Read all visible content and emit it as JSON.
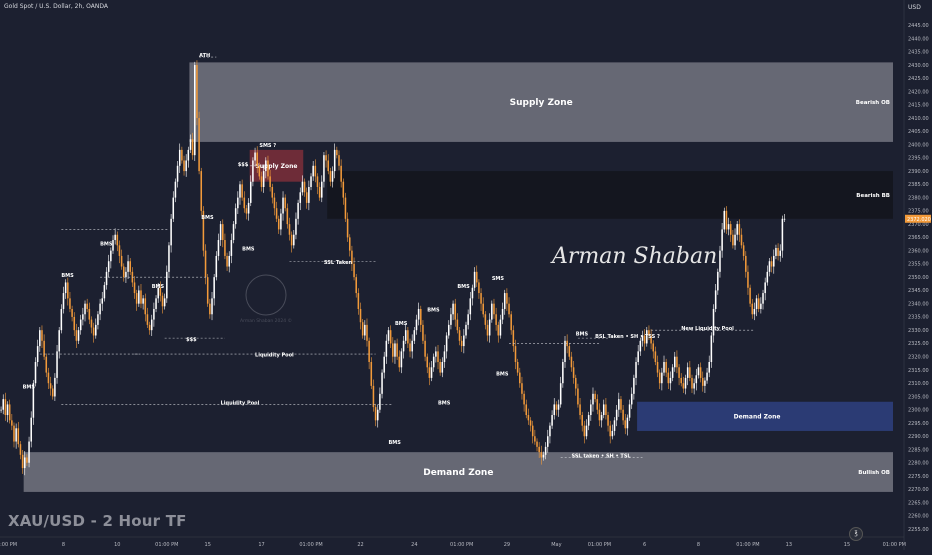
{
  "header": {
    "title": "Gold Spot / U.S. Dollar, 2h, OANDA"
  },
  "watermark": "XAU/USD - 2 Hour TF",
  "currency": "USD",
  "signature": "Arman Shaban",
  "logo_text": "Arman Shaban 2024 ©",
  "tv_logo_glyph": "℥",
  "colors": {
    "background": "#1c2030",
    "bull_candle": "#ffffff",
    "bear_candle": "#f29a3a",
    "supply_zone": "#6a6d78",
    "demand_zone_gray": "#6a6d78",
    "bearish_bb": "#14161f",
    "demand_zone_blue": "#2c3d78",
    "supply_zone_red": "#7d2f3a",
    "price_tag": "#f29a3a"
  },
  "chart_data": {
    "type": "candlestick",
    "title": "Gold Spot / U.S. Dollar, 2h, OANDA",
    "ylim": [
      2252,
      2450
    ],
    "yticks": [
      2255,
      2260,
      2265,
      2270,
      2275,
      2280,
      2285,
      2290,
      2295,
      2300,
      2305,
      2310,
      2315,
      2320,
      2325,
      2330,
      2335,
      2340,
      2345,
      2350,
      2355,
      2360,
      2365,
      2370,
      2375,
      2380,
      2385,
      2390,
      2395,
      2400,
      2405,
      2410,
      2415,
      2420,
      2425,
      2430,
      2435,
      2440,
      2445
    ],
    "xtick_labels": [
      "01:00 PM",
      "8",
      "10",
      "01:00 PM",
      "15",
      "17",
      "01:00 PM",
      "22",
      "24",
      "01:00 PM",
      "29",
      "May",
      "01:00 PM",
      "6",
      "8",
      "01:00 PM",
      "13",
      "15",
      "01:00 PM"
    ],
    "xtick_index": [
      2,
      29,
      54,
      77,
      96,
      121,
      144,
      167,
      192,
      214,
      235,
      258,
      278,
      299,
      324,
      347,
      366,
      393,
      415
    ],
    "last_price": "2372.020",
    "zones": [
      {
        "label": "Supply Zone",
        "side_label": "Bearish OB",
        "x0": 88,
        "x1": 420,
        "y_low": 2401,
        "y_high": 2431,
        "kind": "gray"
      },
      {
        "label": "",
        "side_label": "Bearish BB",
        "x0": 152,
        "x1": 420,
        "y_low": 2372,
        "y_high": 2390,
        "kind": "dark"
      },
      {
        "label": "Supply Zone",
        "side_label": "",
        "x0": 116,
        "x1": 146,
        "y_low": 2386,
        "y_high": 2398,
        "kind": "red"
      },
      {
        "label": "Demand Zone",
        "side_label": "",
        "x0": 296,
        "x1": 420,
        "y_low": 2292,
        "y_high": 2303,
        "kind": "blue"
      },
      {
        "label": "Demand Zone",
        "side_label": "Bullish OB",
        "x0": 11,
        "x1": 420,
        "y_low": 2269,
        "y_high": 2284,
        "kind": "gray"
      }
    ],
    "annotations": [
      {
        "text": "ATH",
        "x": 92,
        "y": 2433
      },
      {
        "text": "SMS ?",
        "x": 120,
        "y": 2399
      },
      {
        "text": "$$$",
        "x": 110,
        "y": 2392
      },
      {
        "text": "BMS",
        "x": 93,
        "y": 2372
      },
      {
        "text": "BMS",
        "x": 46,
        "y": 2362
      },
      {
        "text": "BMS",
        "x": 28,
        "y": 2350
      },
      {
        "text": "BMS",
        "x": 70,
        "y": 2346
      },
      {
        "text": "BMS",
        "x": 112,
        "y": 2360
      },
      {
        "text": "$$$",
        "x": 86,
        "y": 2326
      },
      {
        "text": "SSL Taken",
        "x": 150,
        "y": 2355
      },
      {
        "text": "Liquidity Pool",
        "x": 118,
        "y": 2320
      },
      {
        "text": "Liquidity Pool",
        "x": 102,
        "y": 2302
      },
      {
        "text": "BMS",
        "x": 10,
        "y": 2308
      },
      {
        "text": "BMS",
        "x": 183,
        "y": 2332
      },
      {
        "text": "BMS",
        "x": 198,
        "y": 2337
      },
      {
        "text": "BMS",
        "x": 212,
        "y": 2346
      },
      {
        "text": "SMS",
        "x": 228,
        "y": 2349
      },
      {
        "text": "BMS",
        "x": 180,
        "y": 2287
      },
      {
        "text": "BMS",
        "x": 203,
        "y": 2302
      },
      {
        "text": "BMS",
        "x": 230,
        "y": 2313
      },
      {
        "text": "BMS",
        "x": 267,
        "y": 2328
      },
      {
        "text": "BSL Taken • SH • TSS ?",
        "x": 276,
        "y": 2327
      },
      {
        "text": "New Liquidity Pool",
        "x": 316,
        "y": 2330
      },
      {
        "text": "SSL taken • SH • TSL",
        "x": 265,
        "y": 2282
      }
    ],
    "lines": [
      {
        "x0": 28,
        "x1": 78,
        "y": 2368
      },
      {
        "x0": 46,
        "x1": 96,
        "y": 2350
      },
      {
        "x0": 18,
        "x1": 64,
        "y": 2321
      },
      {
        "x0": 76,
        "x1": 104,
        "y": 2327
      },
      {
        "x0": 112,
        "x1": 124,
        "y": 2392
      },
      {
        "x0": 62,
        "x1": 174,
        "y": 2321
      },
      {
        "x0": 28,
        "x1": 182,
        "y": 2302
      },
      {
        "x0": 134,
        "x1": 174,
        "y": 2356
      },
      {
        "x0": 236,
        "x1": 278,
        "y": 2325
      },
      {
        "x0": 268,
        "x1": 282,
        "y": 2327
      },
      {
        "x0": 302,
        "x1": 350,
        "y": 2330
      },
      {
        "x0": 260,
        "x1": 298,
        "y": 2282
      },
      {
        "x0": 92,
        "x1": 100,
        "y": 2433
      }
    ],
    "open_start": 2300,
    "closes": [
      2300,
      2304,
      2298,
      2302,
      2296,
      2294,
      2288,
      2293,
      2287,
      2283,
      2278,
      2282,
      2280,
      2288,
      2297,
      2310,
      2318,
      2324,
      2330,
      2326,
      2320,
      2314,
      2310,
      2308,
      2305,
      2312,
      2322,
      2330,
      2338,
      2344,
      2348,
      2342,
      2338,
      2335,
      2330,
      2326,
      2330,
      2334,
      2336,
      2340,
      2338,
      2334,
      2331,
      2328,
      2332,
      2336,
      2340,
      2342,
      2347,
      2352,
      2356,
      2360,
      2364,
      2366,
      2362,
      2358,
      2354,
      2350,
      2352,
      2356,
      2352,
      2348,
      2344,
      2340,
      2345,
      2340,
      2342,
      2336,
      2332,
      2330,
      2334,
      2338,
      2342,
      2346,
      2343,
      2339,
      2342,
      2352,
      2362,
      2372,
      2380,
      2386,
      2392,
      2398,
      2394,
      2390,
      2394,
      2398,
      2402,
      2396,
      2430,
      2410,
      2390,
      2375,
      2360,
      2350,
      2340,
      2336,
      2342,
      2350,
      2358,
      2364,
      2370,
      2364,
      2358,
      2354,
      2358,
      2364,
      2370,
      2376,
      2380,
      2385,
      2380,
      2376,
      2374,
      2378,
      2386,
      2394,
      2397,
      2392,
      2388,
      2384,
      2390,
      2394,
      2388,
      2384,
      2380,
      2376,
      2372,
      2368,
      2374,
      2380,
      2376,
      2370,
      2366,
      2362,
      2366,
      2372,
      2378,
      2382,
      2386,
      2382,
      2378,
      2384,
      2388,
      2392,
      2388,
      2384,
      2380,
      2386,
      2396,
      2394,
      2390,
      2386,
      2390,
      2398,
      2396,
      2392,
      2386,
      2380,
      2372,
      2365,
      2360,
      2355,
      2350,
      2344,
      2338,
      2333,
      2328,
      2332,
      2326,
      2318,
      2309,
      2301,
      2296,
      2300,
      2306,
      2314,
      2320,
      2326,
      2330,
      2325,
      2320,
      2325,
      2320,
      2316,
      2322,
      2326,
      2330,
      2325,
      2322,
      2326,
      2330,
      2334,
      2338,
      2332,
      2326,
      2320,
      2316,
      2312,
      2316,
      2320,
      2322,
      2318,
      2314,
      2318,
      2322,
      2328,
      2332,
      2336,
      2340,
      2334,
      2330,
      2326,
      2324,
      2328,
      2332,
      2336,
      2342,
      2346,
      2352,
      2348,
      2344,
      2340,
      2336,
      2332,
      2328,
      2334,
      2340,
      2336,
      2332,
      2328,
      2334,
      2338,
      2344,
      2340,
      2336,
      2330,
      2324,
      2318,
      2314,
      2310,
      2306,
      2302,
      2298,
      2296,
      2294,
      2290,
      2288,
      2286,
      2284,
      2282,
      2283,
      2286,
      2290,
      2294,
      2298,
      2302,
      2300,
      2302,
      2310,
      2318,
      2326,
      2324,
      2320,
      2316,
      2312,
      2308,
      2302,
      2298,
      2294,
      2290,
      2294,
      2298,
      2302,
      2306,
      2304,
      2300,
      2296,
      2298,
      2302,
      2298,
      2294,
      2290,
      2292,
      2296,
      2300,
      2304,
      2300,
      2296,
      2293,
      2297,
      2302,
      2306,
      2312,
      2318,
      2322,
      2326,
      2328,
      2325,
      2330,
      2328,
      2325,
      2322,
      2318,
      2314,
      2310,
      2314,
      2318,
      2314,
      2310,
      2312,
      2316,
      2320,
      2316,
      2312,
      2310,
      2308,
      2312,
      2316,
      2312,
      2308,
      2310,
      2313,
      2316,
      2312,
      2309,
      2311,
      2314,
      2318,
      2328,
      2338,
      2345,
      2352,
      2360,
      2368,
      2375,
      2368,
      2370,
      2366,
      2362,
      2366,
      2370,
      2366,
      2362,
      2358,
      2352,
      2346,
      2340,
      2336,
      2338,
      2342,
      2338,
      2340,
      2344,
      2348,
      2352,
      2356,
      2354,
      2358,
      2361,
      2358,
      2360,
      2372,
      2372
    ]
  }
}
